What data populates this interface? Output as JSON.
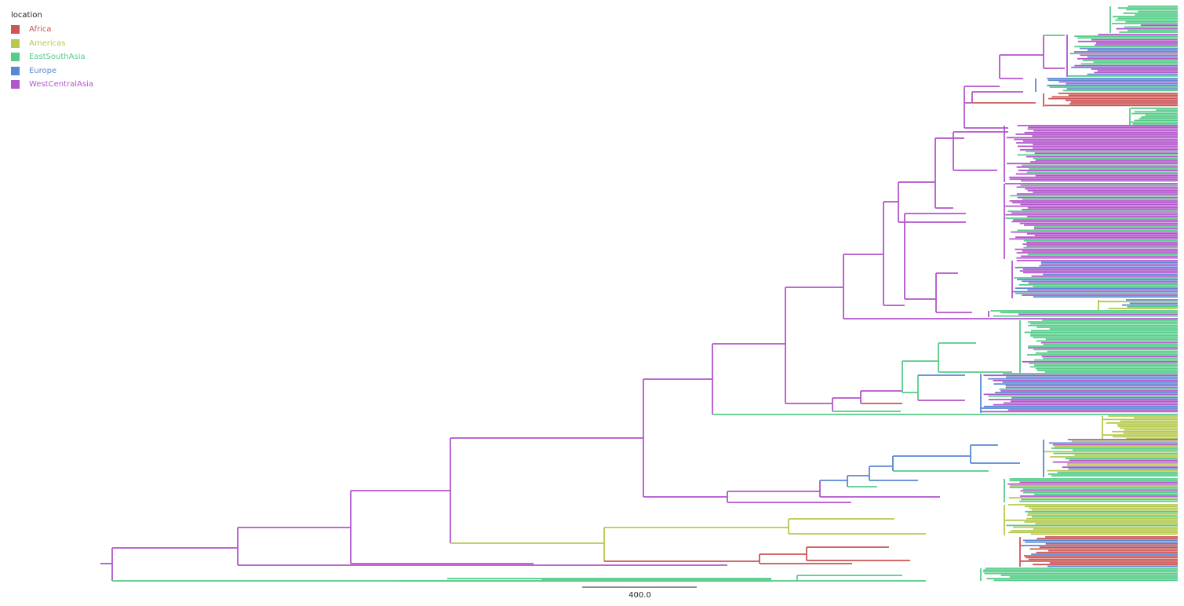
{
  "legend": {
    "title": "location",
    "items": [
      {
        "label": "Africa",
        "color": "#cc5555"
      },
      {
        "label": "Americas",
        "color": "#b6c94e"
      },
      {
        "label": "EastSouthAsia",
        "color": "#55cc88"
      },
      {
        "label": "Europe",
        "color": "#5a88d4"
      },
      {
        "label": "WestCentralAsia",
        "color": "#b355cc"
      }
    ]
  },
  "scale_bar": {
    "label": "400.0"
  }
}
